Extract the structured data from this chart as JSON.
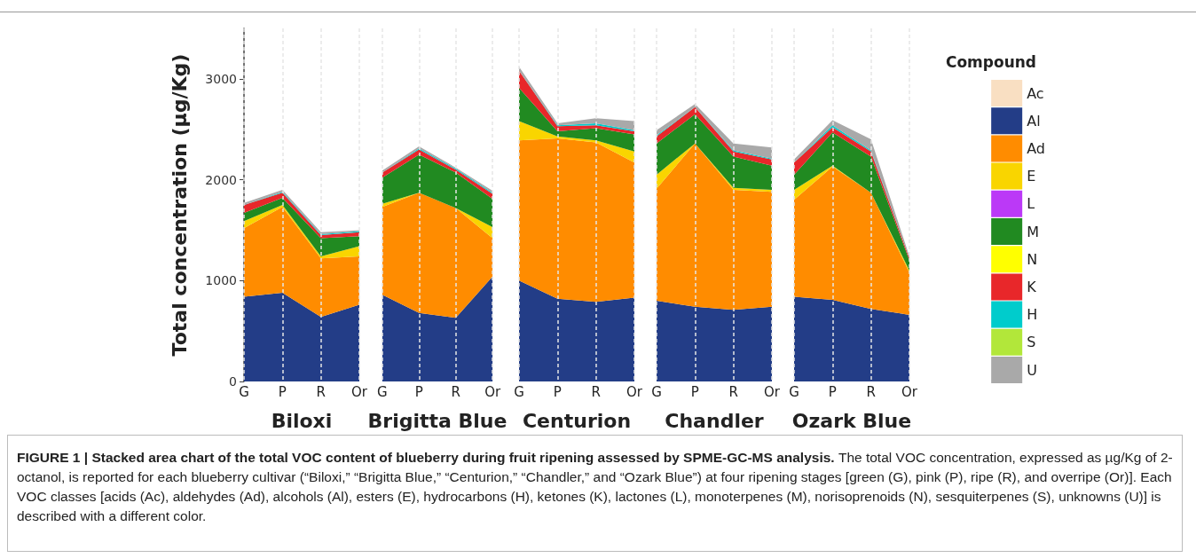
{
  "chart_data": [
    {
      "type": "area",
      "stacked": true,
      "xlabel": "Biloxi",
      "ylabel": "Total concentration (µg/Kg)",
      "categories": [
        "G",
        "P",
        "R",
        "Or"
      ],
      "ylim": [
        0,
        3500
      ],
      "yticks": [
        0,
        1000,
        2000,
        3000
      ],
      "grid": "x",
      "annotations": [
        "FIGURE 1 | Stacked area chart of the total VOC content of blueberry during fruit ripening assessed by SPME-GC-MS analysis.",
        "The total VOC concentration, expressed as µg/Kg of 2-octanol, is reported for each blueberry cultivar (“Biloxi,” “Brigitta Blue,” “Centurion,” “Chandler,” and “Ozark Blue”) at four ripening stages [green (G), pink (P), ripe (R), and overripe (Or)]. Each VOC classes [acids (Ac), aldehydes (Ad), alcohols (Al), esters (E), hydrocarbons (H), ketones (K), lactones (L), monoterpenes (M), norisoprenoids (N), sesquiterpenes (S), unknowns (U)] is described with a different color."
      ],
      "series": [
        {
          "color": "#233d87",
          "values": [
            840,
            880,
            640,
            760
          ]
        },
        {
          "color": "#ff8c00",
          "values": [
            680,
            850,
            580,
            480
          ]
        },
        {
          "color": "#f9d500",
          "values": [
            70,
            20,
            20,
            100
          ]
        },
        {
          "color": "#218a21",
          "values": [
            80,
            70,
            180,
            100
          ]
        },
        {
          "color": "#e8272a",
          "values": [
            80,
            50,
            30,
            40
          ]
        },
        {
          "color": "#00cccc",
          "values": [
            0,
            10,
            10,
            10
          ]
        },
        {
          "color": "#a9a9a9",
          "values": [
            20,
            20,
            20,
            10
          ]
        }
      ]
    },
    {
      "type": "area",
      "stacked": true,
      "xlabel": "Brigitta Blue",
      "categories": [
        "G",
        "P",
        "R",
        "Or"
      ],
      "ylim": [
        0,
        3500
      ],
      "yticks": [
        0,
        1000,
        2000,
        3000
      ],
      "grid": "x",
      "tick_labels": "x",
      "series": [
        {
          "color": "#233d87",
          "values": [
            860,
            680,
            630,
            1040
          ]
        },
        {
          "color": "#ff8c00",
          "values": [
            870,
            1190,
            1090,
            380
          ]
        },
        {
          "color": "#f9d500",
          "values": [
            30,
            0,
            0,
            110
          ]
        },
        {
          "color": "#218a21",
          "values": [
            260,
            380,
            350,
            280
          ]
        },
        {
          "color": "#e8272a",
          "values": [
            50,
            50,
            30,
            50
          ]
        },
        {
          "color": "#00cccc",
          "values": [
            0,
            10,
            10,
            10
          ]
        },
        {
          "color": "#a9a9a9",
          "values": [
            20,
            20,
            10,
            20
          ]
        }
      ]
    },
    {
      "type": "area",
      "stacked": true,
      "xlabel": "Centurion",
      "categories": [
        "G",
        "P",
        "R",
        "Or"
      ],
      "ylim": [
        0,
        3500
      ],
      "yticks": [
        0,
        1000,
        2000,
        3000
      ],
      "grid": "x",
      "tick_labels": "x",
      "series": [
        {
          "color": "#233d87",
          "values": [
            1000,
            820,
            790,
            830
          ]
        },
        {
          "color": "#ff8c00",
          "values": [
            1390,
            1590,
            1580,
            1340
          ]
        },
        {
          "color": "#f9d500",
          "values": [
            190,
            20,
            20,
            110
          ]
        },
        {
          "color": "#218a21",
          "values": [
            330,
            50,
            120,
            170
          ]
        },
        {
          "color": "#e8272a",
          "values": [
            170,
            50,
            30,
            30
          ]
        },
        {
          "color": "#00cccc",
          "values": [
            0,
            10,
            20,
            10
          ]
        },
        {
          "color": "#a9a9a9",
          "values": [
            40,
            20,
            50,
            90
          ]
        }
      ]
    },
    {
      "type": "area",
      "stacked": true,
      "xlabel": "Chandler",
      "categories": [
        "G",
        "P",
        "R",
        "Or"
      ],
      "ylim": [
        0,
        3500
      ],
      "yticks": [
        0,
        1000,
        2000,
        3000
      ],
      "grid": "x",
      "tick_labels": "x",
      "series": [
        {
          "color": "#233d87",
          "values": [
            800,
            740,
            710,
            740
          ]
        },
        {
          "color": "#ff8c00",
          "values": [
            1110,
            1620,
            1190,
            1140
          ]
        },
        {
          "color": "#f9d500",
          "values": [
            140,
            0,
            20,
            20
          ]
        },
        {
          "color": "#218a21",
          "values": [
            310,
            290,
            310,
            240
          ]
        },
        {
          "color": "#e8272a",
          "values": [
            70,
            70,
            50,
            60
          ]
        },
        {
          "color": "#00cccc",
          "values": [
            10,
            0,
            10,
            10
          ]
        },
        {
          "color": "#a9a9a9",
          "values": [
            50,
            30,
            70,
            110
          ]
        }
      ]
    },
    {
      "type": "area",
      "stacked": true,
      "xlabel": "Ozark Blue",
      "categories": [
        "G",
        "P",
        "R",
        "Or"
      ],
      "ylim": [
        0,
        3500
      ],
      "yticks": [
        0,
        1000,
        2000,
        3000
      ],
      "grid": "x",
      "tick_labels": "x",
      "legend": "right",
      "legend_title": "Compound",
      "series": [
        {
          "name": "Ac",
          "color": "#f9dfc2",
          "values": [
            null,
            null,
            null,
            null
          ]
        },
        {
          "name": "Al",
          "color": "#233d87",
          "values": [
            840,
            810,
            720,
            660
          ]
        },
        {
          "name": "Ad",
          "color": "#ff8c00",
          "values": [
            960,
            1320,
            1150,
            420
          ]
        },
        {
          "name": "E",
          "color": "#f9d500",
          "values": [
            100,
            10,
            0,
            20
          ]
        },
        {
          "name": "L",
          "color": "#bb39f7",
          "values": [
            null,
            null,
            null,
            null
          ]
        },
        {
          "name": "M",
          "color": "#218a21",
          "values": [
            150,
            330,
            360,
            100
          ]
        },
        {
          "name": "N",
          "color": "#ffff00",
          "values": [
            null,
            null,
            null,
            null
          ]
        },
        {
          "name": "K",
          "color": "#e8272a",
          "values": [
            120,
            50,
            50,
            20
          ]
        },
        {
          "name": "H",
          "color": "#00cccc",
          "values": [
            0,
            20,
            10,
            0
          ]
        },
        {
          "name": "S",
          "color": "#b2e73a",
          "values": [
            null,
            null,
            null,
            null
          ]
        },
        {
          "name": "U",
          "color": "#a9a9a9",
          "values": [
            30,
            50,
            110,
            20
          ]
        }
      ]
    }
  ]
}
